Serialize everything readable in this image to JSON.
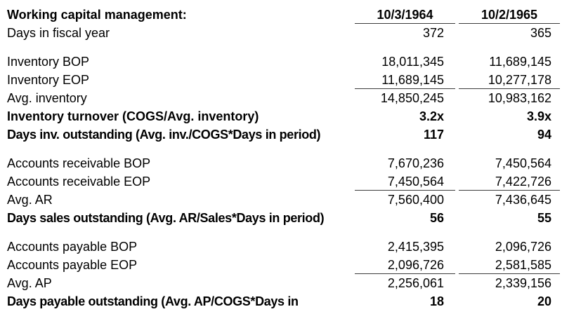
{
  "page": {
    "background_color": "#ffffff",
    "text_color": "#000000",
    "rule_color": "#3c3c3c"
  },
  "table": {
    "title": "Working capital management:",
    "columns": [
      "10/3/1964",
      "10/2/1965"
    ],
    "rows": [
      {
        "label": "Days in fiscal year",
        "v1964": "372",
        "v1965": "365"
      },
      {
        "label": "Inventory BOP",
        "v1964": "18,011,345",
        "v1965": "11,689,145"
      },
      {
        "label": "Inventory EOP",
        "v1964": "11,689,145",
        "v1965": "10,277,178"
      },
      {
        "label": "Avg. inventory",
        "v1964": "14,850,245",
        "v1965": "10,983,162"
      },
      {
        "label": "Inventory turnover (COGS/Avg. inventory)",
        "v1964": "3.2x",
        "v1965": "3.9x"
      },
      {
        "label": "Days inv. outstanding (Avg. inv./COGS*Days in period)",
        "v1964": "117",
        "v1965": "94"
      },
      {
        "label": "Accounts receivable BOP",
        "v1964": "7,670,236",
        "v1965": "7,450,564"
      },
      {
        "label": "Accounts receivable EOP",
        "v1964": "7,450,564",
        "v1965": "7,422,726"
      },
      {
        "label": "Avg. AR",
        "v1964": "7,560,400",
        "v1965": "7,436,645"
      },
      {
        "label": "Days sales outstanding (Avg. AR/Sales*Days in period)",
        "v1964": "56",
        "v1965": "55"
      },
      {
        "label": "Accounts payable BOP",
        "v1964": "2,415,395",
        "v1965": "2,096,726"
      },
      {
        "label": "Accounts payable EOP",
        "v1964": "2,096,726",
        "v1965": "2,581,585"
      },
      {
        "label": "Avg. AP",
        "v1964": "2,256,061",
        "v1965": "2,339,156"
      },
      {
        "label": "Days payable outstanding (Avg. AP/COGS*Days in",
        "v1964": "18",
        "v1965": "20"
      }
    ]
  }
}
